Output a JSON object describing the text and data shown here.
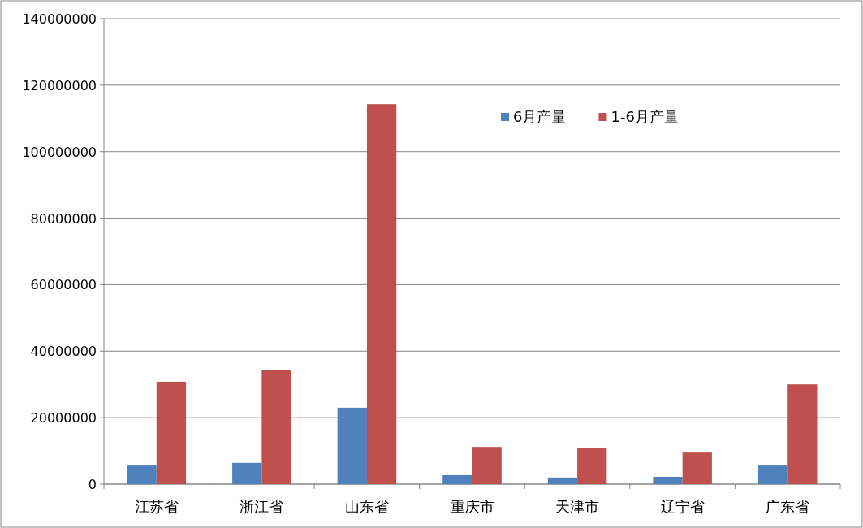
{
  "chart_data": {
    "type": "bar",
    "categories": [
      "江苏省",
      "浙江省",
      "山东省",
      "重庆市",
      "天津市",
      "辽宁省",
      "广东省"
    ],
    "series": [
      {
        "name": "6月产量",
        "color": "#4f81bd",
        "values": [
          5600000,
          6400000,
          23000000,
          2700000,
          2000000,
          2200000,
          5600000
        ]
      },
      {
        "name": "1-6月产量",
        "color": "#c0504d",
        "values": [
          30800000,
          34400000,
          114300000,
          11200000,
          11000000,
          9500000,
          30000000
        ]
      }
    ],
    "ylim": [
      0,
      140000000
    ],
    "yticks": [
      0,
      20000000,
      40000000,
      60000000,
      80000000,
      100000000,
      120000000,
      140000000
    ],
    "grid": "y",
    "legend": "top right"
  }
}
